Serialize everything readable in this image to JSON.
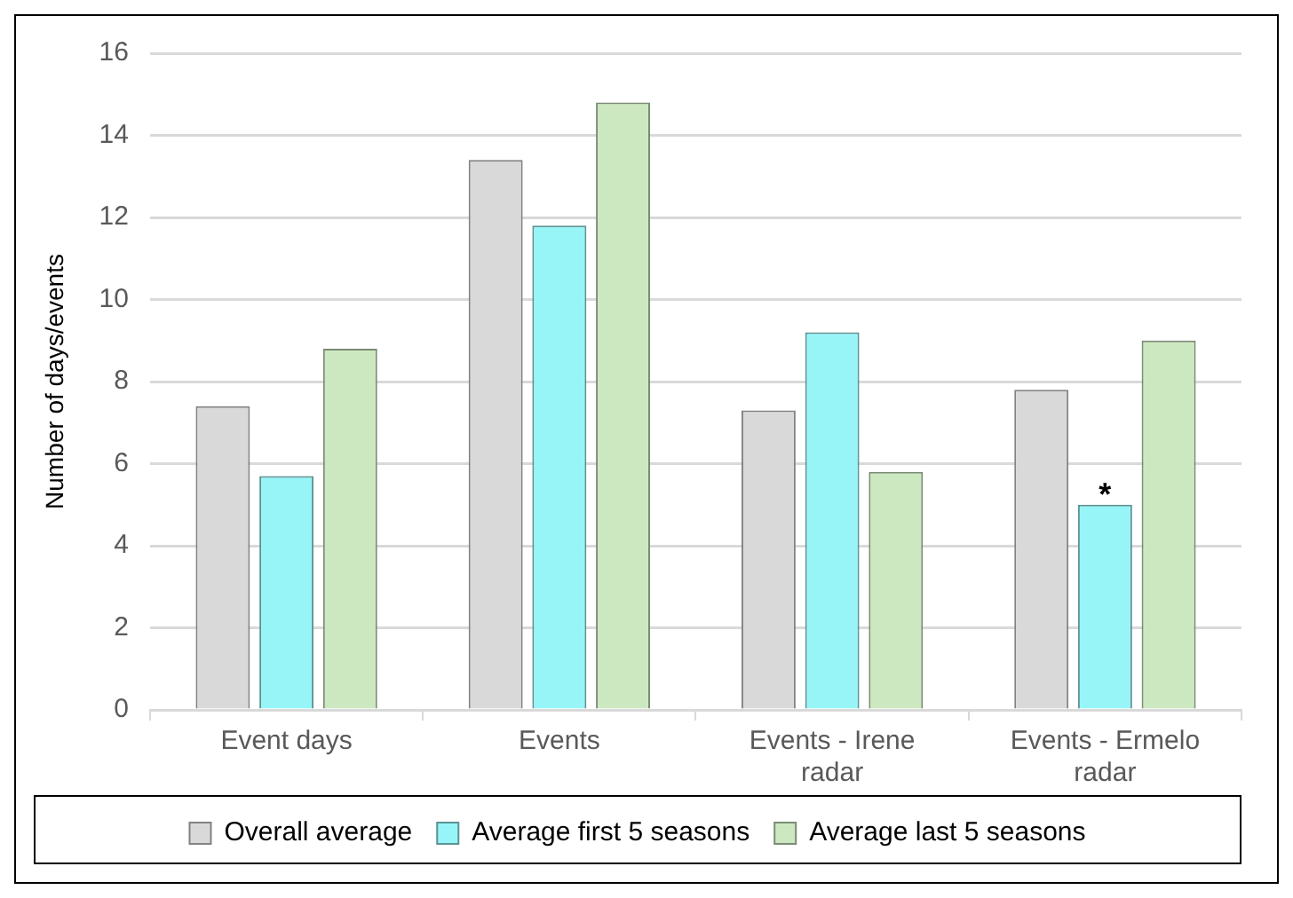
{
  "chart_data": {
    "type": "bar",
    "ylabel": "Number of days/events",
    "categories": [
      "Event days",
      "Events",
      "Events - Irene radar",
      "Events - Ermelo radar"
    ],
    "series": [
      {
        "name": "Overall average",
        "color": "#d9d9d9",
        "values": [
          7.4,
          13.4,
          7.3,
          7.8
        ]
      },
      {
        "name": "Average first 5 seasons",
        "color": "#97f5f8",
        "values": [
          5.7,
          11.8,
          9.2,
          5.0
        ]
      },
      {
        "name": "Average last 5 seasons",
        "color": "#cce8c0",
        "values": [
          8.8,
          14.8,
          5.8,
          9.0
        ]
      }
    ],
    "ylim": [
      0,
      16
    ],
    "yticks": [
      0,
      2,
      4,
      6,
      8,
      10,
      12,
      14,
      16
    ],
    "grid": "y",
    "legend": "bottom",
    "annotations": [
      {
        "text": "*",
        "x": "Events - Ermelo radar",
        "y": 5.0
      }
    ]
  }
}
